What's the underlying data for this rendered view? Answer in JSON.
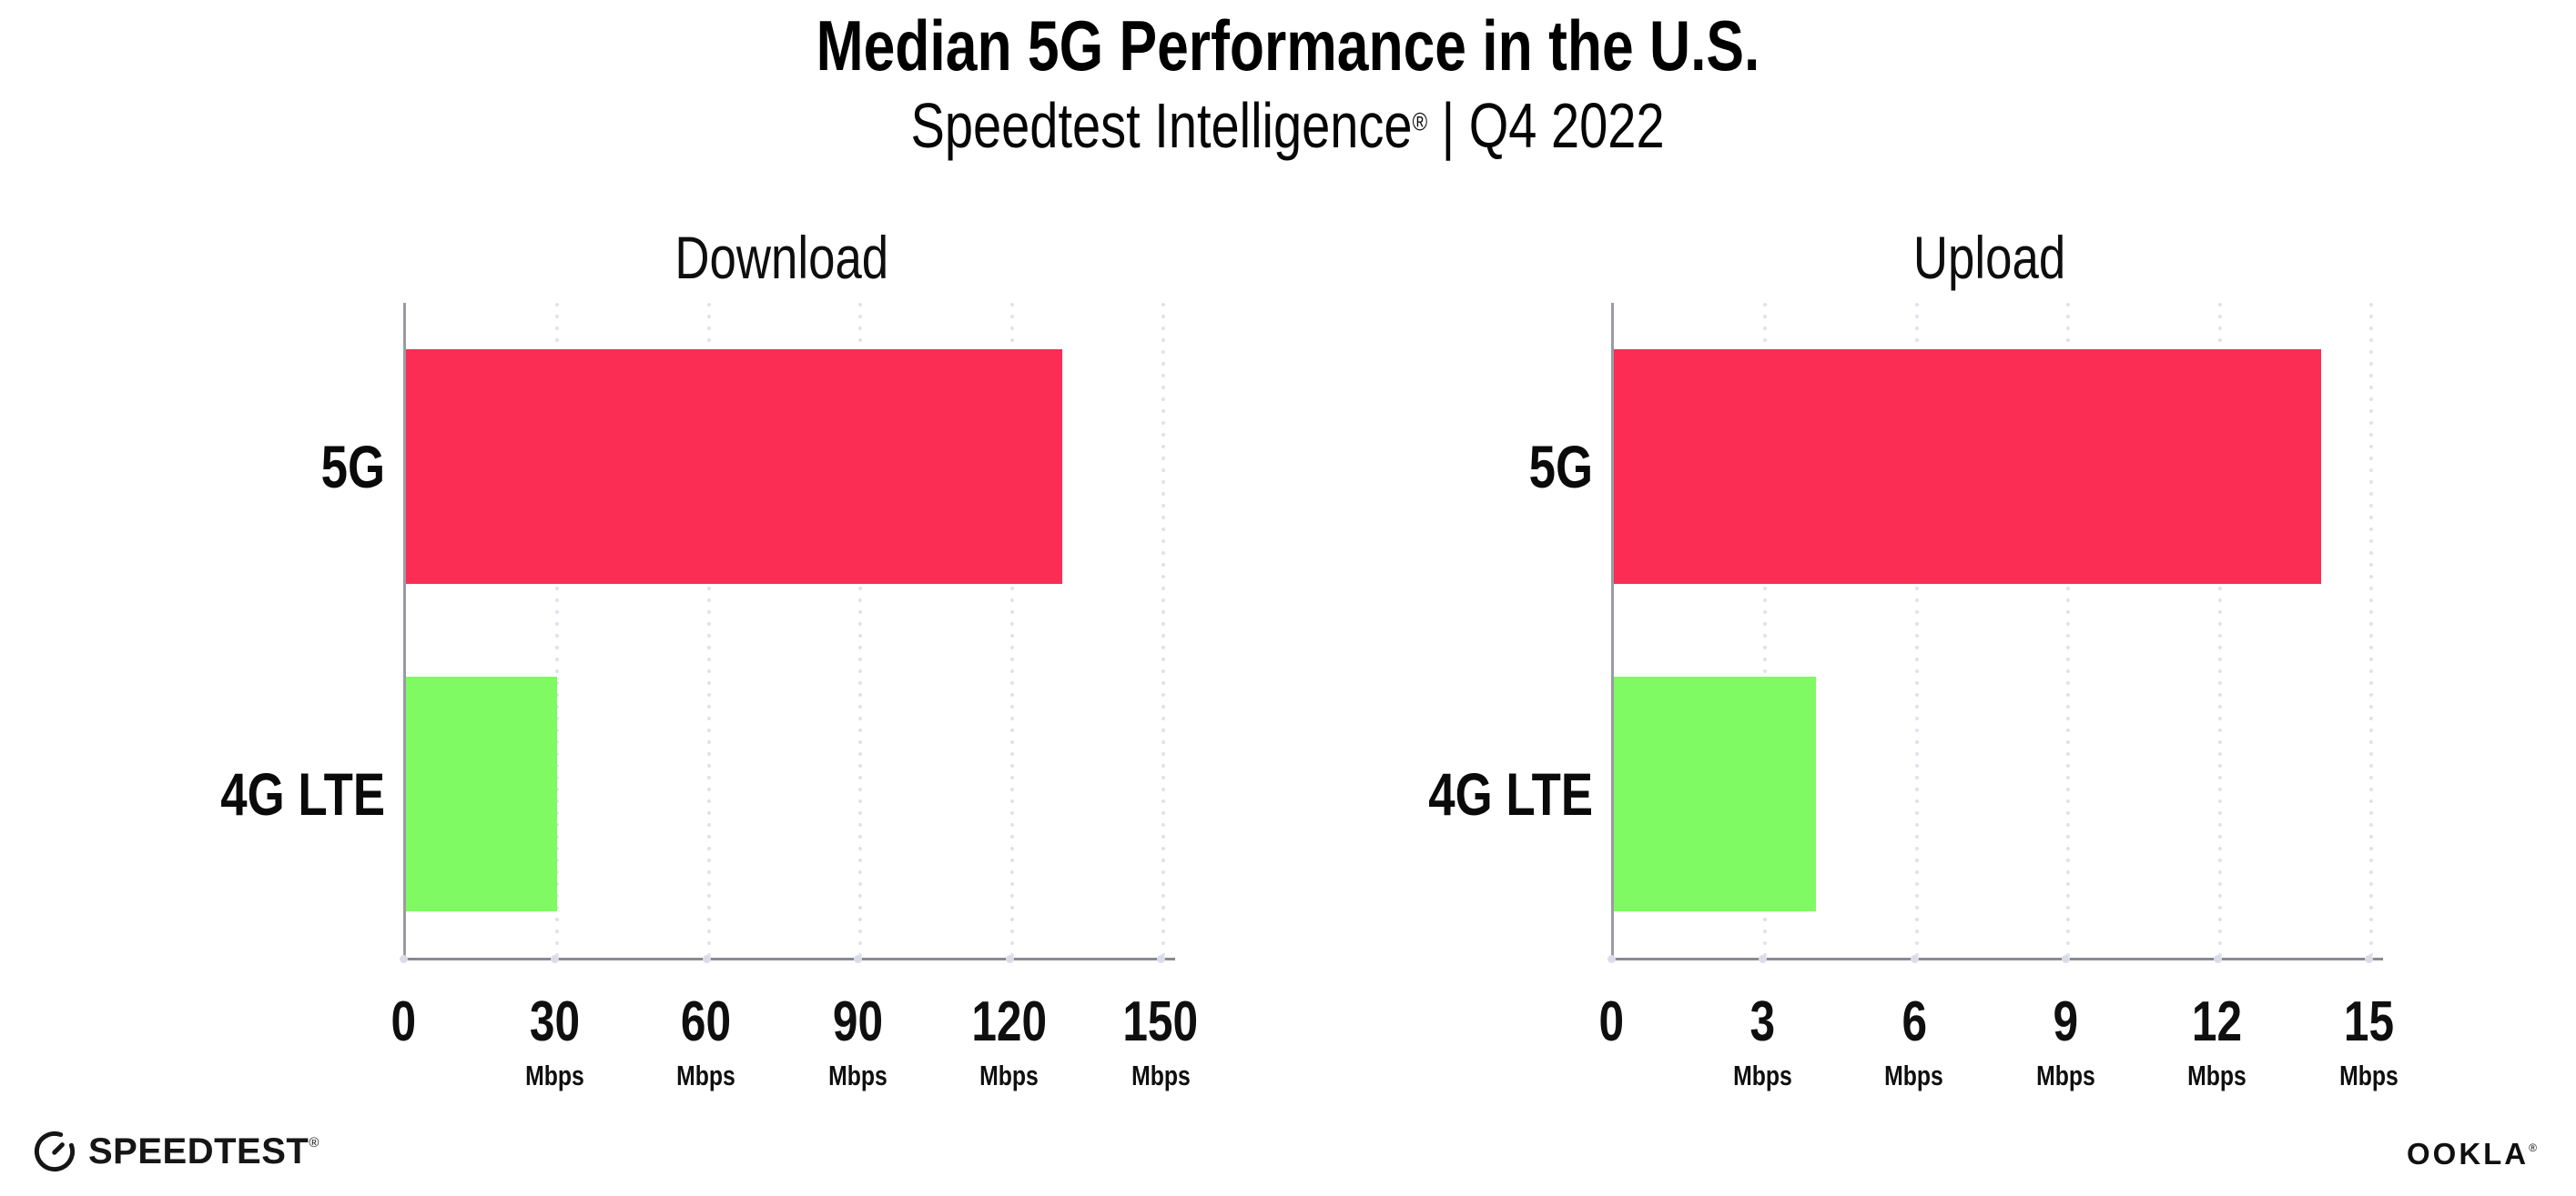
{
  "header": {
    "title": "Median 5G Performance in the U.S.",
    "subtitle_main": "Speedtest Intelligence",
    "subtitle_reg": "®",
    "subtitle_rest": " | Q4 2022"
  },
  "colors": {
    "bar_5g": "#FC2D55",
    "bar_4g_lte": "#7FFA63",
    "gridline_dot": "#E2E2EC",
    "x_axis": "#8A8A92",
    "y_axis": "#9A9AA2",
    "axis_tick_dot": "#DCDCE8",
    "text": "#0E0E0E"
  },
  "chart_data": [
    {
      "type": "bar",
      "orientation": "horizontal",
      "title": "Download",
      "categories": [
        "5G",
        "4G LTE"
      ],
      "values": [
        130,
        30
      ],
      "unit": "Mbps",
      "xlim": [
        0,
        150
      ],
      "ticks": [
        0,
        30,
        60,
        90,
        120,
        150
      ],
      "bar_colors": [
        "#FC2D55",
        "#7FFA63"
      ],
      "grid": "dotted-vertical",
      "legend": "none"
    },
    {
      "type": "bar",
      "orientation": "horizontal",
      "title": "Upload",
      "categories": [
        "5G",
        "4G LTE"
      ],
      "values": [
        14,
        4
      ],
      "unit": "Mbps",
      "xlim": [
        0,
        15
      ],
      "ticks": [
        0,
        3,
        6,
        9,
        12,
        15
      ],
      "bar_colors": [
        "#FC2D55",
        "#7FFA63"
      ],
      "grid": "dotted-vertical",
      "legend": "none"
    }
  ],
  "footer": {
    "speedtest_label": "SPEEDTEST",
    "speedtest_mark": "®",
    "ookla_label": "OOKLA",
    "ookla_mark": "®"
  }
}
